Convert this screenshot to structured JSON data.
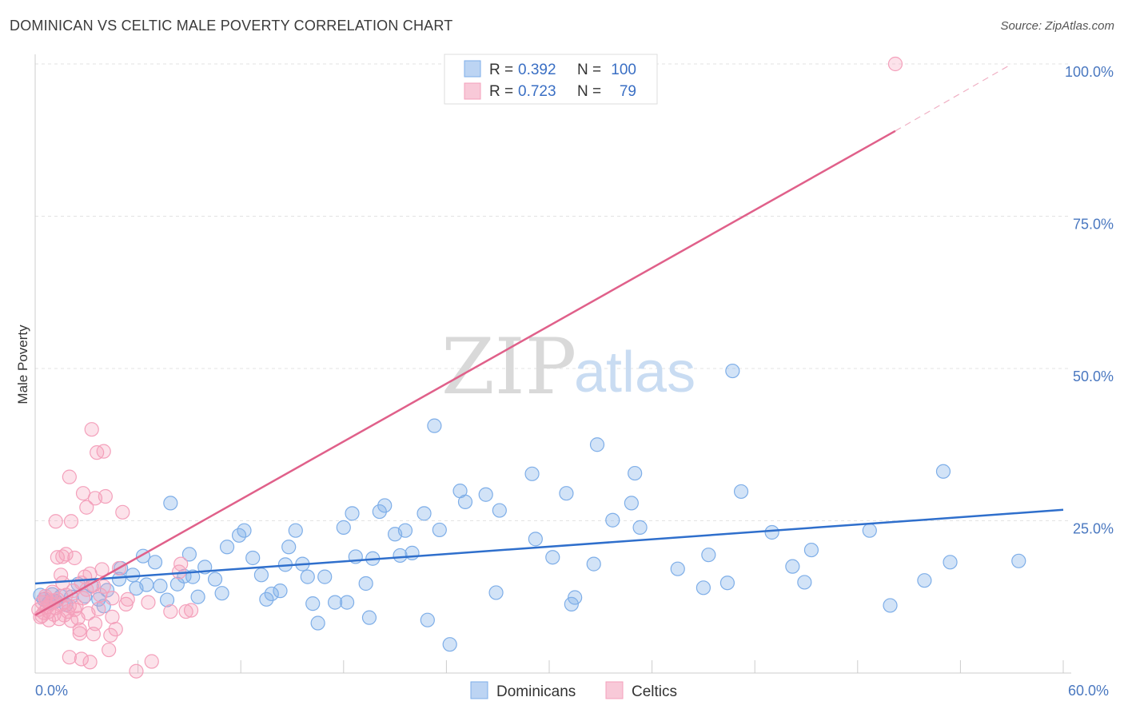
{
  "title": "DOMINICAN VS CELTIC MALE POVERTY CORRELATION CHART",
  "source": "Source: ZipAtlas.com",
  "watermark": {
    "zip": "ZIP",
    "atlas": "atlas"
  },
  "colors": {
    "dominicans": "#7eaee8",
    "dominicans_line": "#2f6fcc",
    "celtics": "#f4a0bb",
    "celtics_line": "#e0608a",
    "tick": "#4a78c0"
  },
  "legend": {
    "rows": [
      {
        "r_label": "R =",
        "r_value": "0.392",
        "n_label": "N =",
        "n_value": "100"
      },
      {
        "r_label": "R =",
        "r_value": "0.723",
        "n_label": "N =",
        "n_value": "79"
      }
    ],
    "bottom": [
      "Dominicans",
      "Celtics"
    ]
  },
  "chart_data": {
    "type": "scatter",
    "title": "DOMINICAN VS CELTIC MALE POVERTY CORRELATION CHART",
    "xlabel": "",
    "ylabel": "Male Poverty",
    "xlim": [
      0,
      60
    ],
    "ylim": [
      0,
      105
    ],
    "x_tick_labels": [
      "0.0%",
      "60.0%"
    ],
    "y_ticks": [
      25,
      50,
      75,
      100
    ],
    "y_tick_labels": [
      "25.0%",
      "50.0%",
      "75.0%",
      "100.0%"
    ],
    "grid": true,
    "legend_position": "top-center",
    "series": [
      {
        "name": "Dominicans",
        "r": 0.392,
        "n": 100,
        "trend": {
          "x0": 0,
          "y0": 14.7,
          "x1": 60,
          "y1": 26.8
        },
        "points": [
          [
            0.3,
            12.8
          ],
          [
            0.5,
            12.1
          ],
          [
            0.8,
            11.5
          ],
          [
            1.0,
            12.9
          ],
          [
            1.2,
            11.8
          ],
          [
            1.5,
            12.6
          ],
          [
            1.8,
            11.2
          ],
          [
            2.1,
            12.5
          ],
          [
            2.5,
            14.6
          ],
          [
            2.9,
            12.6
          ],
          [
            3.3,
            14.3
          ],
          [
            3.7,
            12.1
          ],
          [
            4.0,
            11.0
          ],
          [
            4.2,
            13.6
          ],
          [
            4.9,
            15.4
          ],
          [
            5.0,
            17.2
          ],
          [
            5.7,
            16.1
          ],
          [
            5.9,
            13.9
          ],
          [
            6.3,
            19.2
          ],
          [
            6.5,
            14.5
          ],
          [
            7.0,
            18.2
          ],
          [
            7.3,
            14.3
          ],
          [
            7.7,
            12.0
          ],
          [
            7.9,
            27.9
          ],
          [
            8.3,
            14.6
          ],
          [
            8.7,
            15.9
          ],
          [
            9.0,
            19.5
          ],
          [
            9.2,
            15.8
          ],
          [
            9.5,
            12.5
          ],
          [
            9.9,
            17.4
          ],
          [
            10.5,
            15.4
          ],
          [
            10.9,
            13.1
          ],
          [
            11.2,
            20.7
          ],
          [
            11.9,
            22.6
          ],
          [
            12.2,
            23.4
          ],
          [
            12.7,
            18.9
          ],
          [
            13.2,
            16.1
          ],
          [
            13.5,
            12.1
          ],
          [
            13.8,
            13.0
          ],
          [
            14.3,
            13.5
          ],
          [
            14.6,
            17.8
          ],
          [
            14.8,
            20.7
          ],
          [
            15.2,
            23.4
          ],
          [
            15.6,
            17.9
          ],
          [
            15.9,
            15.8
          ],
          [
            16.2,
            11.4
          ],
          [
            16.5,
            8.2
          ],
          [
            16.9,
            15.8
          ],
          [
            17.5,
            11.6
          ],
          [
            18.0,
            23.9
          ],
          [
            18.2,
            11.6
          ],
          [
            18.5,
            26.2
          ],
          [
            18.7,
            19.1
          ],
          [
            19.3,
            14.7
          ],
          [
            19.5,
            9.1
          ],
          [
            19.7,
            18.8
          ],
          [
            20.1,
            26.5
          ],
          [
            20.4,
            27.5
          ],
          [
            21.0,
            22.8
          ],
          [
            21.3,
            19.3
          ],
          [
            21.6,
            23.4
          ],
          [
            22.0,
            19.7
          ],
          [
            22.7,
            26.2
          ],
          [
            22.9,
            8.7
          ],
          [
            23.3,
            40.6
          ],
          [
            23.6,
            23.5
          ],
          [
            24.2,
            4.7
          ],
          [
            24.8,
            29.9
          ],
          [
            25.1,
            28.1
          ],
          [
            26.3,
            29.3
          ],
          [
            26.9,
            13.2
          ],
          [
            27.1,
            26.7
          ],
          [
            29.0,
            32.7
          ],
          [
            29.2,
            22.0
          ],
          [
            30.2,
            19.0
          ],
          [
            31.0,
            29.5
          ],
          [
            31.3,
            11.3
          ],
          [
            31.5,
            12.4
          ],
          [
            32.6,
            17.9
          ],
          [
            32.8,
            37.5
          ],
          [
            33.7,
            25.1
          ],
          [
            34.8,
            27.9
          ],
          [
            35.0,
            32.8
          ],
          [
            35.3,
            23.9
          ],
          [
            37.5,
            17.1
          ],
          [
            39.0,
            14.0
          ],
          [
            39.3,
            19.4
          ],
          [
            40.4,
            14.8
          ],
          [
            40.7,
            49.6
          ],
          [
            41.2,
            29.8
          ],
          [
            43.0,
            23.1
          ],
          [
            44.2,
            17.5
          ],
          [
            44.9,
            14.9
          ],
          [
            45.3,
            20.2
          ],
          [
            48.7,
            23.4
          ],
          [
            49.9,
            11.1
          ],
          [
            51.9,
            15.2
          ],
          [
            53.0,
            33.1
          ],
          [
            53.4,
            18.2
          ],
          [
            57.4,
            18.4
          ]
        ]
      },
      {
        "name": "Celtics",
        "r": 0.723,
        "n": 79,
        "trend": {
          "x0": 0,
          "y0": 9.5,
          "x1": 50.2,
          "y1": 89.0
        },
        "trend_dashed": {
          "x0": 50.2,
          "y0": 89.0,
          "x1": 57.0,
          "y1": 100.0
        },
        "points": [
          [
            0.2,
            10.4
          ],
          [
            0.3,
            9.2
          ],
          [
            0.4,
            11.6
          ],
          [
            0.5,
            9.9
          ],
          [
            0.6,
            12.2
          ],
          [
            0.7,
            10.9
          ],
          [
            0.8,
            8.7
          ],
          [
            0.9,
            11.4
          ],
          [
            1.0,
            13.3
          ],
          [
            1.1,
            9.6
          ],
          [
            1.2,
            10.7
          ],
          [
            1.3,
            12.1
          ],
          [
            1.4,
            8.9
          ],
          [
            1.5,
            11.2
          ],
          [
            1.3,
            19.0
          ],
          [
            1.2,
            24.9
          ],
          [
            1.6,
            14.8
          ],
          [
            1.7,
            9.5
          ],
          [
            1.8,
            12.8
          ],
          [
            1.9,
            10.1
          ],
          [
            1.5,
            16.1
          ],
          [
            1.6,
            19.1
          ],
          [
            2.0,
            11.0
          ],
          [
            2.1,
            8.6
          ],
          [
            2.2,
            13.5
          ],
          [
            2.3,
            10.4
          ],
          [
            1.8,
            19.5
          ],
          [
            2.0,
            32.2
          ],
          [
            2.1,
            24.9
          ],
          [
            2.3,
            18.9
          ],
          [
            2.0,
            2.6
          ],
          [
            2.5,
            9.0
          ],
          [
            2.6,
            7.1
          ],
          [
            2.6,
            6.5
          ],
          [
            2.7,
            14.8
          ],
          [
            2.8,
            12.3
          ],
          [
            2.8,
            29.5
          ],
          [
            2.7,
            2.3
          ],
          [
            2.9,
            15.8
          ],
          [
            3.0,
            13.7
          ],
          [
            3.0,
            27.2
          ],
          [
            3.2,
            16.3
          ],
          [
            3.2,
            1.8
          ],
          [
            3.3,
            40.0
          ],
          [
            3.4,
            14.4
          ],
          [
            3.4,
            6.4
          ],
          [
            3.5,
            8.1
          ],
          [
            3.6,
            36.2
          ],
          [
            3.5,
            28.7
          ],
          [
            3.7,
            10.5
          ],
          [
            3.8,
            12.8
          ],
          [
            3.9,
            17.0
          ],
          [
            4.0,
            14.2
          ],
          [
            4.1,
            29.0
          ],
          [
            4.0,
            36.4
          ],
          [
            4.3,
            3.8
          ],
          [
            4.4,
            6.2
          ],
          [
            4.5,
            9.2
          ],
          [
            4.5,
            12.3
          ],
          [
            4.7,
            7.2
          ],
          [
            4.9,
            17.2
          ],
          [
            5.1,
            26.4
          ],
          [
            5.3,
            11.3
          ],
          [
            5.4,
            12.1
          ],
          [
            5.9,
            0.3
          ],
          [
            6.6,
            11.6
          ],
          [
            6.8,
            1.9
          ],
          [
            7.9,
            10.1
          ],
          [
            8.4,
            16.6
          ],
          [
            8.5,
            17.9
          ],
          [
            8.8,
            10.1
          ],
          [
            9.1,
            10.3
          ],
          [
            1.0,
            11.9
          ],
          [
            0.8,
            10.1
          ],
          [
            0.4,
            9.4
          ],
          [
            0.6,
            12.6
          ],
          [
            2.4,
            11.0
          ],
          [
            50.2,
            100.0
          ],
          [
            3.1,
            9.8
          ]
        ]
      }
    ]
  }
}
